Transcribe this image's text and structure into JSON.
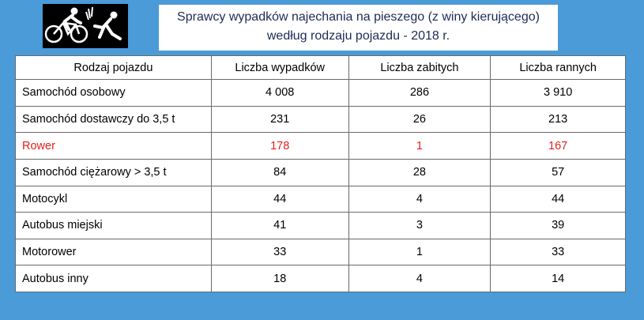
{
  "title": {
    "line1": "Sprawcy wypadków najechania na pieszego (z winy kierującego)",
    "line2": "według rodzaju pojazdu  - 2018 r."
  },
  "logo": {
    "icon": "cyclist-hitting-pedestrian-icon"
  },
  "colors": {
    "background": "#4a9bd8",
    "highlight": "#e02020"
  },
  "table": {
    "headers": [
      "Rodzaj pojazdu",
      "Liczba wypadków",
      "Liczba zabitych",
      "Liczba rannych"
    ],
    "rows": [
      {
        "name": "Samochód osobowy",
        "accidents": "4 008",
        "killed": "286",
        "injured": "3 910"
      },
      {
        "name": "Samochód dostawczy do 3,5 t",
        "accidents": "231",
        "killed": "26",
        "injured": "213"
      },
      {
        "name": "Rower",
        "accidents": "178",
        "killed": "1",
        "injured": "167",
        "highlight": true
      },
      {
        "name": "Samochód ciężarowy > 3,5 t",
        "accidents": "84",
        "killed": "28",
        "injured": "57"
      },
      {
        "name": "Motocykl",
        "accidents": "44",
        "killed": "4",
        "injured": "44"
      },
      {
        "name": "Autobus miejski",
        "accidents": "41",
        "killed": "3",
        "injured": "39"
      },
      {
        "name": "Motorower",
        "accidents": "33",
        "killed": "1",
        "injured": "33"
      },
      {
        "name": "Autobus inny",
        "accidents": "18",
        "killed": "4",
        "injured": "14"
      }
    ]
  }
}
